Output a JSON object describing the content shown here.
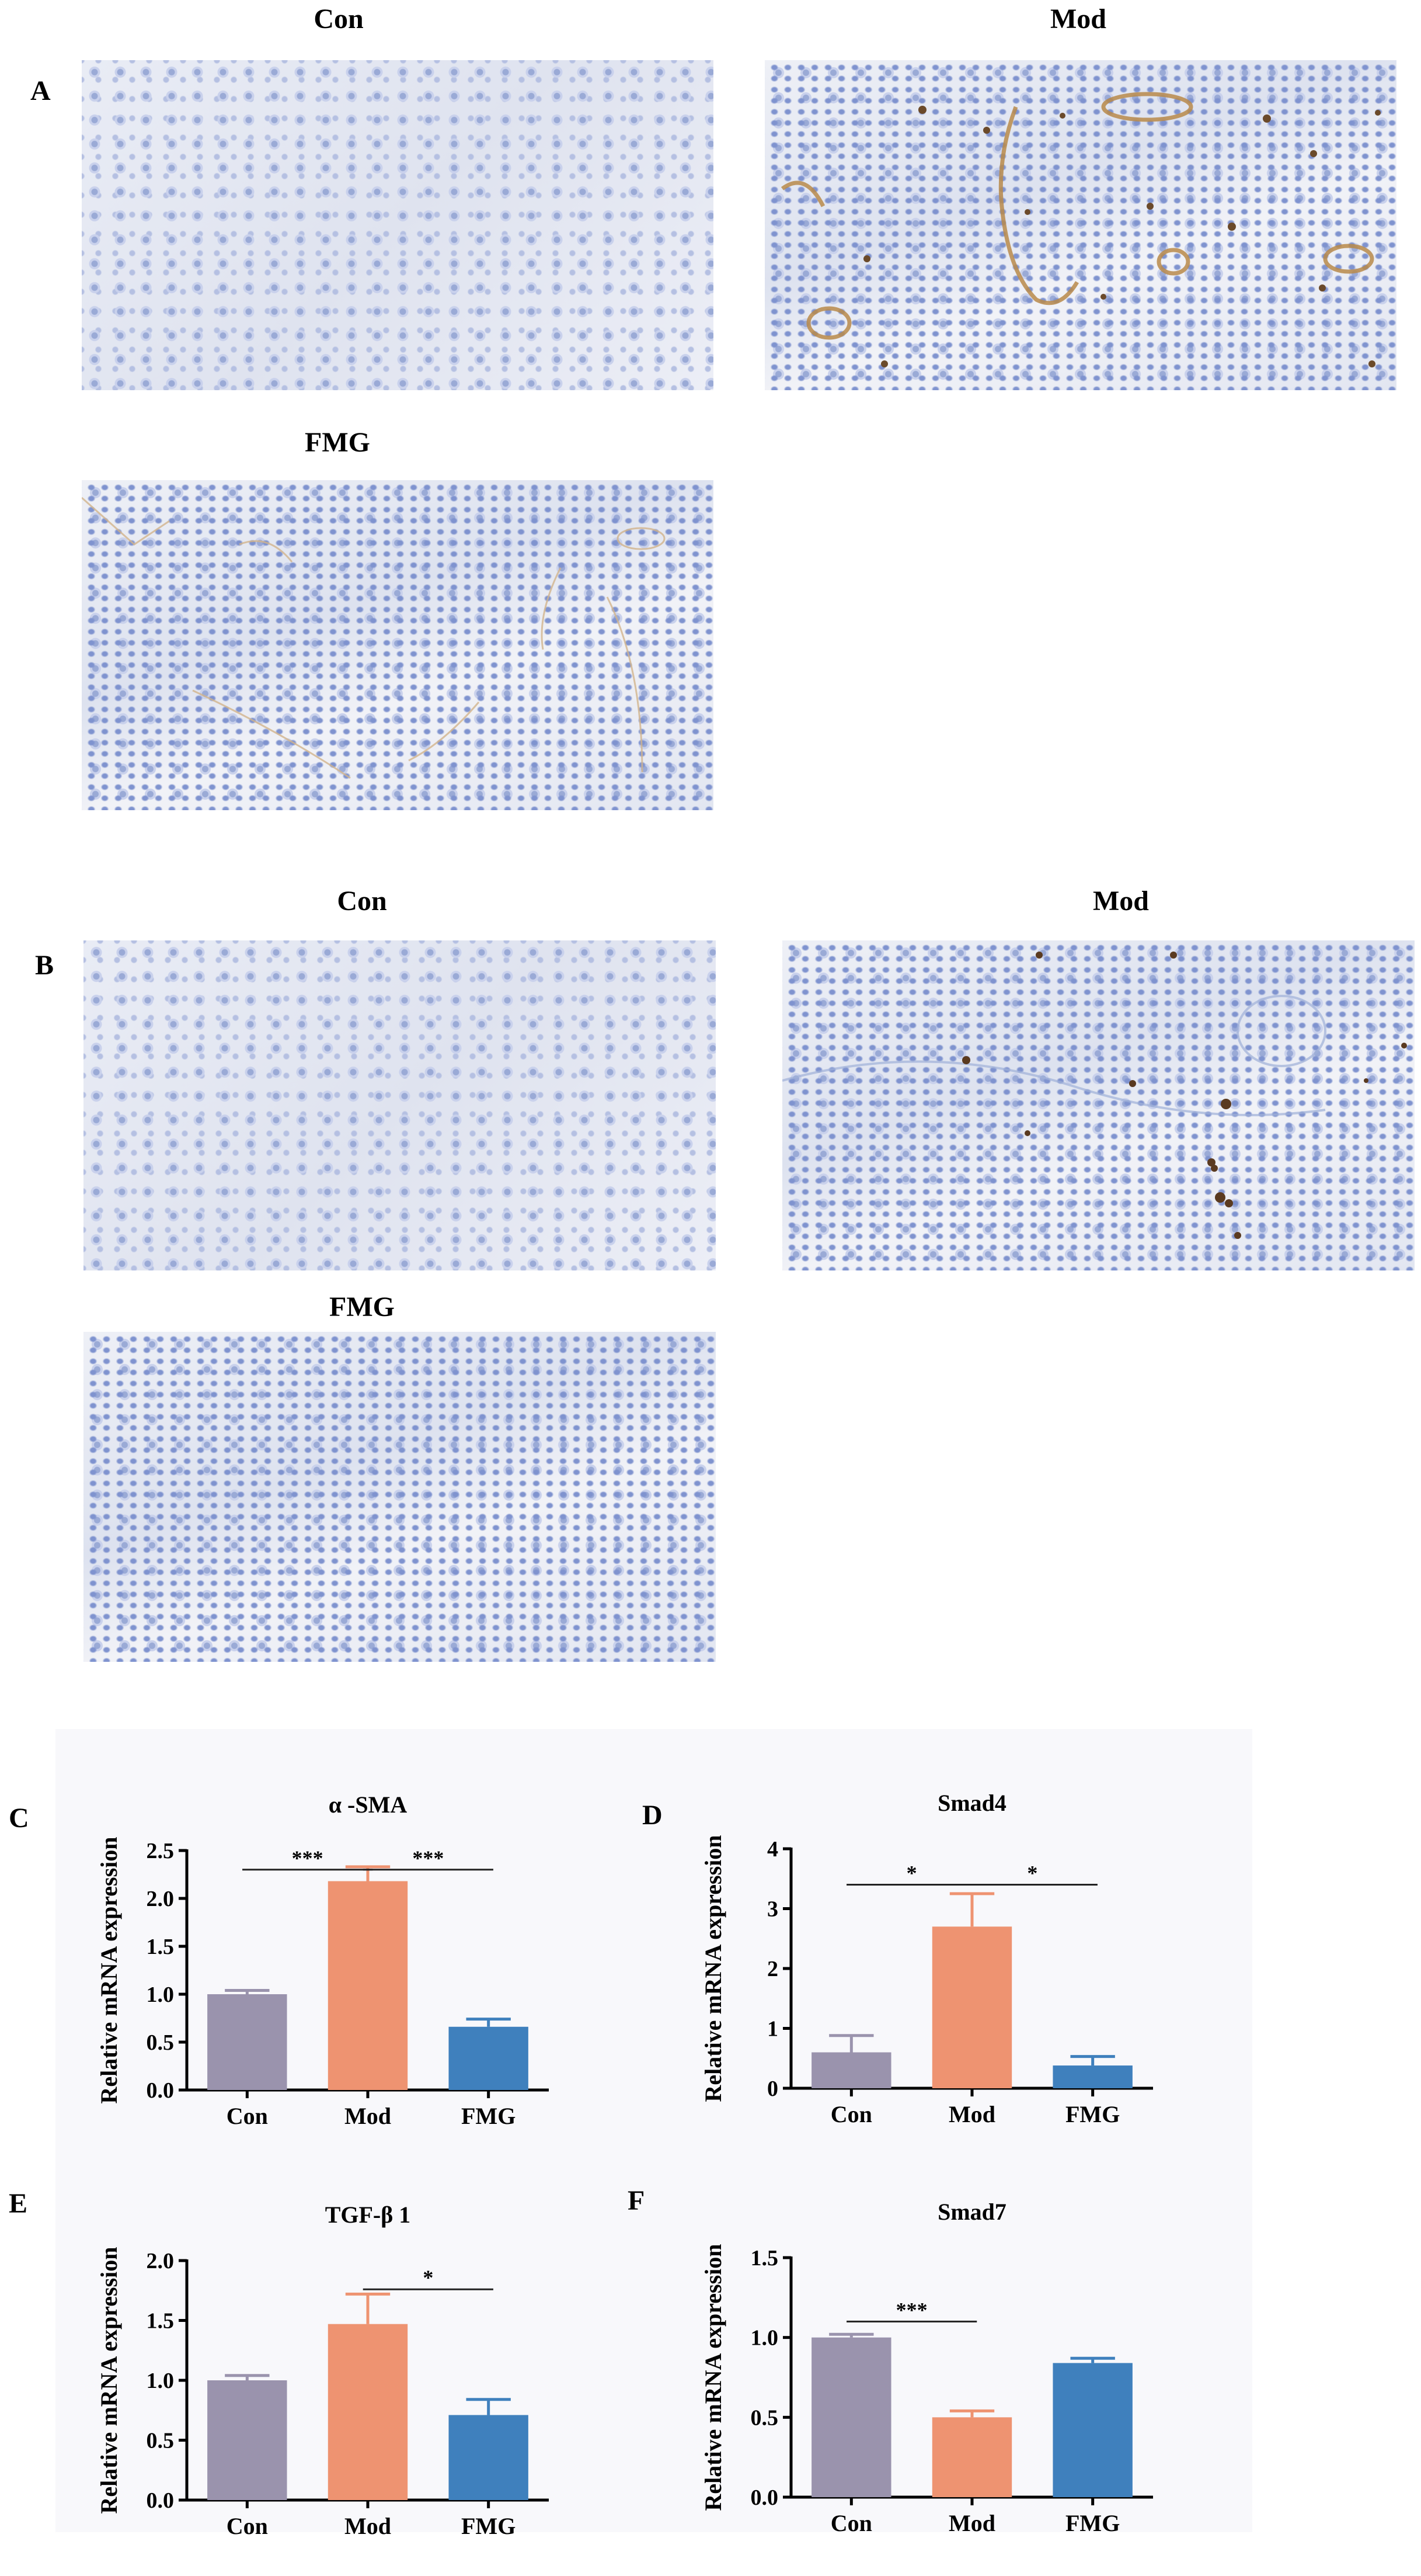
{
  "panels": {
    "A": {
      "letter": "A",
      "images": [
        {
          "title": "Con",
          "stain": "faint"
        },
        {
          "title": "Mod",
          "stain": "strong"
        },
        {
          "title": "FMG",
          "stain": "moderate"
        }
      ]
    },
    "B": {
      "letter": "B",
      "images": [
        {
          "title": "Con",
          "stain": "faint"
        },
        {
          "title": "Mod",
          "stain": "strong"
        },
        {
          "title": "FMG",
          "stain": "faint"
        }
      ]
    }
  },
  "colors": {
    "Con": "#9a93ad",
    "Mod": "#ee9371",
    "FMG": "#3f80bd"
  },
  "chart_data": [
    {
      "letter": "C",
      "type": "bar",
      "title": "α -SMA",
      "ylabel": "Relative mRNA expression",
      "categories": [
        "Con",
        "Mod",
        "FMG"
      ],
      "values": [
        1.0,
        2.18,
        0.66
      ],
      "errors": [
        0.04,
        0.15,
        0.08
      ],
      "ylim": [
        0,
        2.5
      ],
      "yticks": [
        "0.0",
        "0.5",
        "1.0",
        "1.5",
        "2.0",
        "2.5"
      ],
      "significance": [
        {
          "from": 0,
          "to": 1,
          "label": "***",
          "level": 2.3
        },
        {
          "from": 1,
          "to": 2,
          "label": "***",
          "level": 2.3
        }
      ]
    },
    {
      "letter": "D",
      "type": "bar",
      "title": "Smad4",
      "ylabel": "Relative mRNA expression",
      "categories": [
        "Con",
        "Mod",
        "FMG"
      ],
      "values": [
        0.6,
        2.7,
        0.38
      ],
      "errors": [
        0.28,
        0.55,
        0.15
      ],
      "ylim": [
        0,
        4
      ],
      "yticks": [
        "0",
        "1",
        "2",
        "3",
        "4"
      ],
      "significance": [
        {
          "from": 0,
          "to": 1,
          "label": "*",
          "level": 3.4
        },
        {
          "from": 1,
          "to": 2,
          "label": "*",
          "level": 3.4
        }
      ]
    },
    {
      "letter": "E",
      "type": "bar",
      "title": "TGF-β 1",
      "ylabel": "Relative mRNA expression",
      "categories": [
        "Con",
        "Mod",
        "FMG"
      ],
      "values": [
        1.0,
        1.47,
        0.71
      ],
      "errors": [
        0.04,
        0.25,
        0.13
      ],
      "ylim": [
        0,
        2.0
      ],
      "yticks": [
        "0.0",
        "0.5",
        "1.0",
        "1.5",
        "2.0"
      ],
      "significance": [
        {
          "from": 1,
          "to": 2,
          "label": "*",
          "level": 1.76
        }
      ]
    },
    {
      "letter": "F",
      "type": "bar",
      "title": "Smad7",
      "ylabel": "Relative mRNA expression",
      "categories": [
        "Con",
        "Mod",
        "FMG"
      ],
      "values": [
        1.0,
        0.5,
        0.84
      ],
      "errors": [
        0.02,
        0.04,
        0.03
      ],
      "ylim": [
        0,
        1.5
      ],
      "yticks": [
        "0.0",
        "0.5",
        "1.0",
        "1.5"
      ],
      "significance": [
        {
          "from": 0,
          "to": 1,
          "label": "***",
          "level": 1.1
        }
      ]
    }
  ]
}
